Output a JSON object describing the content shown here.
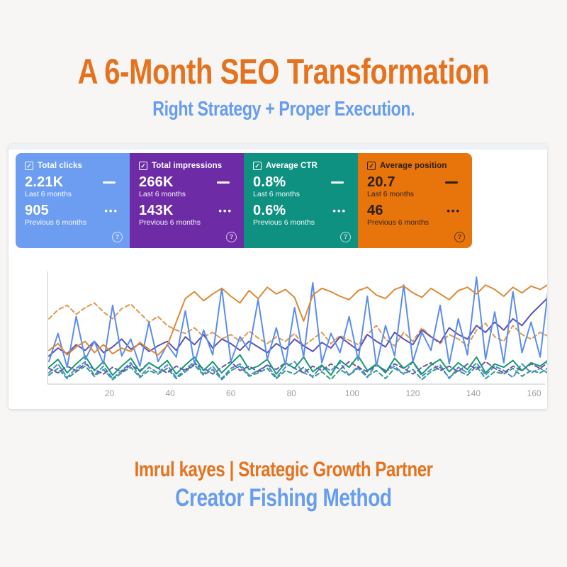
{
  "page": {
    "background": "#f7f6f4",
    "accent_orange": "#e4721e",
    "accent_blue": "#669df0"
  },
  "header": {
    "title": "A 6-Month SEO Transformation",
    "subtitle": "Right Strategy + Proper Execution."
  },
  "cards": [
    {
      "label": "Total clicks",
      "value_current": "2.21K",
      "period_current": "Last 6 months",
      "value_previous": "905",
      "period_previous": "Previous 6 months",
      "color": "#6c9df1",
      "text_color": "#ffffff",
      "icons": {
        "checkbox": "checked",
        "current": "dash",
        "previous": "ellipsis",
        "help": "?"
      }
    },
    {
      "label": "Total impressions",
      "value_current": "266K",
      "period_current": "Last 6 months",
      "value_previous": "143K",
      "period_previous": "Previous 6 months",
      "color": "#6d2ba6",
      "text_color": "#ffffff",
      "icons": {
        "checkbox": "checked",
        "current": "dash",
        "previous": "ellipsis",
        "help": "?"
      }
    },
    {
      "label": "Average CTR",
      "value_current": "0.8%",
      "period_current": "Last 6 months",
      "value_previous": "0.6%",
      "period_previous": "Previous 6 months",
      "color": "#0e9180",
      "text_color": "#ffffff",
      "icons": {
        "checkbox": "checked",
        "current": "dash",
        "previous": "ellipsis",
        "help": "?"
      }
    },
    {
      "label": "Average position",
      "value_current": "20.7",
      "period_current": "Last 6 months",
      "value_previous": "46",
      "period_previous": "Previous 6 months",
      "color": "#e8740c",
      "text_color": "#2d2014",
      "icons": {
        "checkbox": "checked",
        "current": "dash",
        "previous": "ellipsis",
        "help": "?"
      }
    }
  ],
  "glyphs": {
    "check": "✓",
    "ellipsis": "•••",
    "help": "?"
  },
  "chart_data": {
    "type": "line",
    "x_unit_step": 3,
    "x_ticks": [
      20,
      40,
      60,
      80,
      100,
      120,
      140,
      160
    ],
    "xlim": [
      0,
      168
    ],
    "ylim": [
      0,
      100
    ],
    "grid": false,
    "legend": "none (series colors match metric cards; solid = last 6 months, dashed = previous 6 months)",
    "axis_color": "#d5d8dc",
    "tick_color": "#9aa0a6",
    "series": [
      {
        "name": "Average CTR — previous 6 months",
        "color": "#2f9d85",
        "dashed": true,
        "values": [
          8,
          14,
          5,
          11,
          16,
          7,
          13,
          4,
          10,
          15,
          6,
          12,
          9,
          14,
          5,
          11,
          17,
          8,
          13,
          4,
          12,
          16,
          7,
          10,
          14,
          5,
          12,
          9,
          15,
          6,
          11,
          4,
          13,
          8,
          16,
          7,
          12,
          5,
          14,
          9,
          13,
          4,
          11,
          15,
          6,
          12,
          8,
          16,
          5,
          11,
          9,
          14,
          7,
          12,
          10,
          15
        ]
      },
      {
        "name": "Total clicks — previous 6 months",
        "color": "#5089cf",
        "dashed": true,
        "values": [
          10,
          18,
          6,
          14,
          20,
          8,
          16,
          5,
          12,
          19,
          7,
          15,
          10,
          17,
          6,
          13,
          20,
          9,
          16,
          5,
          14,
          18,
          8,
          12,
          17,
          6,
          15,
          20,
          10,
          7,
          16,
          12,
          19,
          8,
          14,
          6,
          18,
          11,
          16,
          9,
          20,
          7,
          13,
          17,
          5,
          15,
          10,
          19,
          8,
          16,
          12,
          6,
          18,
          10,
          14,
          9
        ]
      },
      {
        "name": "Total impressions — previous 6 months",
        "color": "#6e55ae",
        "dashed": true,
        "values": [
          14,
          10,
          16,
          12,
          18,
          13,
          9,
          15,
          11,
          17,
          12,
          19,
          14,
          10,
          16,
          12,
          18,
          14,
          9,
          15,
          20,
          12,
          16,
          11,
          17,
          13,
          19,
          14,
          10,
          16,
          12,
          18,
          13,
          20,
          15,
          11,
          17,
          12,
          18,
          14,
          9,
          15,
          19,
          12,
          16,
          11,
          18,
          13,
          20,
          14,
          10,
          16,
          12,
          18,
          14,
          20
        ]
      },
      {
        "name": "Average position — previous 6 months",
        "color": "#dd9a4f",
        "dashed": true,
        "values": [
          58,
          66,
          70,
          62,
          68,
          72,
          64,
          58,
          67,
          71,
          63,
          55,
          60,
          52,
          48,
          45,
          50,
          42,
          46,
          40,
          44,
          38,
          47,
          41,
          36,
          42,
          38,
          45,
          34,
          40,
          46,
          36,
          43,
          39,
          35,
          44,
          52,
          40,
          34,
          46,
          38,
          50,
          42,
          36,
          44,
          40,
          34,
          48,
          54,
          42,
          38,
          52,
          44,
          40,
          46,
          42
        ]
      },
      {
        "name": "Average CTR — last 6 months",
        "color": "#169a6f",
        "dashed": false,
        "values": [
          15,
          22,
          10,
          18,
          25,
          12,
          20,
          8,
          16,
          23,
          11,
          19,
          14,
          21,
          9,
          17,
          24,
          12,
          20,
          10,
          18,
          26,
          13,
          16,
          22,
          9,
          19,
          14,
          24,
          11,
          17,
          8,
          21,
          15,
          25,
          12,
          18,
          10,
          23,
          14,
          20,
          9,
          17,
          22,
          11,
          19,
          13,
          24,
          10,
          18,
          15,
          21,
          12,
          19,
          16,
          22
        ]
      },
      {
        "name": "Total impressions — last 6 months",
        "color": "#5952b8",
        "dashed": false,
        "values": [
          25,
          32,
          27,
          35,
          30,
          38,
          28,
          33,
          40,
          31,
          36,
          29,
          34,
          38,
          30,
          42,
          35,
          44,
          32,
          40,
          36,
          30,
          38,
          33,
          28,
          36,
          31,
          40,
          34,
          29,
          37,
          32,
          42,
          36,
          30,
          44,
          38,
          33,
          46,
          40,
          35,
          48,
          42,
          37,
          50,
          44,
          40,
          52,
          46,
          55,
          48,
          58,
          52,
          62,
          70,
          78
        ]
      },
      {
        "name": "Total clicks — last 6 months",
        "color": "#5b8def",
        "dashed": false,
        "values": [
          20,
          45,
          15,
          60,
          22,
          38,
          18,
          70,
          25,
          40,
          16,
          55,
          20,
          35,
          24,
          65,
          18,
          48,
          26,
          85,
          20,
          42,
          30,
          75,
          22,
          50,
          17,
          68,
          24,
          90,
          19,
          45,
          28,
          60,
          21,
          78,
          16,
          52,
          25,
          88,
          20,
          46,
          30,
          70,
          18,
          58,
          26,
          95,
          22,
          64,
          19,
          82,
          28,
          55,
          24,
          92
        ]
      },
      {
        "name": "Average position — last 6 months",
        "color": "#dd8a35",
        "dashed": false,
        "values": [
          30,
          36,
          26,
          33,
          38,
          28,
          35,
          27,
          32,
          29,
          37,
          31,
          26,
          34,
          55,
          76,
          82,
          74,
          80,
          85,
          78,
          72,
          83,
          76,
          86,
          80,
          84,
          77,
          56,
          79,
          85,
          82,
          78,
          75,
          83,
          86,
          79,
          76,
          84,
          87,
          81,
          77,
          85,
          80,
          75,
          83,
          86,
          80,
          88,
          84,
          78,
          86,
          81,
          87,
          84,
          89
        ]
      }
    ]
  },
  "footer": {
    "line1": "Imrul kayes | Strategic Growth Partner",
    "line2": "Creator Fishing Method"
  }
}
